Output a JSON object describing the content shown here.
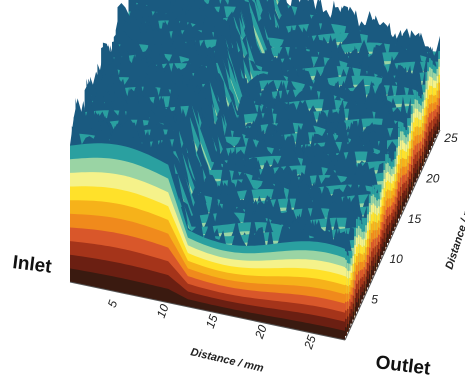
{
  "chart_data": {
    "type": "surface3d",
    "title": "",
    "xlabel": "Distance / mm",
    "ylabel": "Distance / mm",
    "x_ticks": [
      5,
      10,
      15,
      20,
      25
    ],
    "y_ticks": [
      5,
      10,
      15,
      20,
      25
    ],
    "xlim": [
      0,
      28
    ],
    "ylim": [
      0,
      26
    ],
    "annotations": [
      "Inlet",
      "Outlet"
    ],
    "colors": [
      "#3a1a10",
      "#6b1f12",
      "#a5341a",
      "#d9572a",
      "#f08a1c",
      "#f6b21a",
      "#ffe12a",
      "#f5f28a",
      "#9ad4a4",
      "#2aa0a0",
      "#1a5a80"
    ],
    "profile_note": "height high near inlet (x<10), dropping to lower plateau toward outlet; ridged stripes along y"
  }
}
